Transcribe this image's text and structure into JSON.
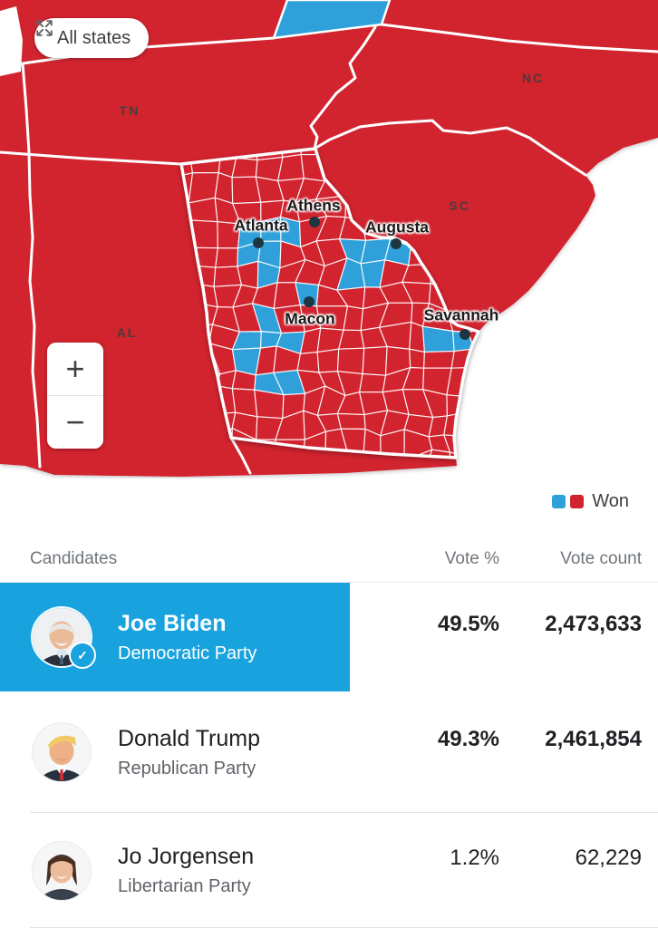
{
  "map": {
    "controls": {
      "all_states": "All states",
      "zoom_in": "+",
      "zoom_out": "−"
    },
    "legend_label": "Won",
    "states": [
      {
        "abbr": "TN"
      },
      {
        "abbr": "NC"
      },
      {
        "abbr": "SC"
      },
      {
        "abbr": "AL"
      }
    ],
    "cities": [
      {
        "name": "Atlanta"
      },
      {
        "name": "Athens"
      },
      {
        "name": "Augusta"
      },
      {
        "name": "Macon"
      },
      {
        "name": "Savannah"
      }
    ],
    "colors": {
      "republican": "#d2242f",
      "democrat": "#2fa0da",
      "highlight": "#18a2de"
    }
  },
  "table": {
    "headers": {
      "candidates": "Candidates",
      "vote_pct": "Vote %",
      "vote_count": "Vote count"
    },
    "winner_check": "✓",
    "rows": [
      {
        "name": "Joe Biden",
        "party": "Democratic Party",
        "pct": "49.5%",
        "count": "2,473,633"
      },
      {
        "name": "Donald Trump",
        "party": "Republican Party",
        "pct": "49.3%",
        "count": "2,461,854"
      },
      {
        "name": "Jo Jorgensen",
        "party": "Libertarian Party",
        "pct": "1.2%",
        "count": "62,229"
      }
    ]
  }
}
